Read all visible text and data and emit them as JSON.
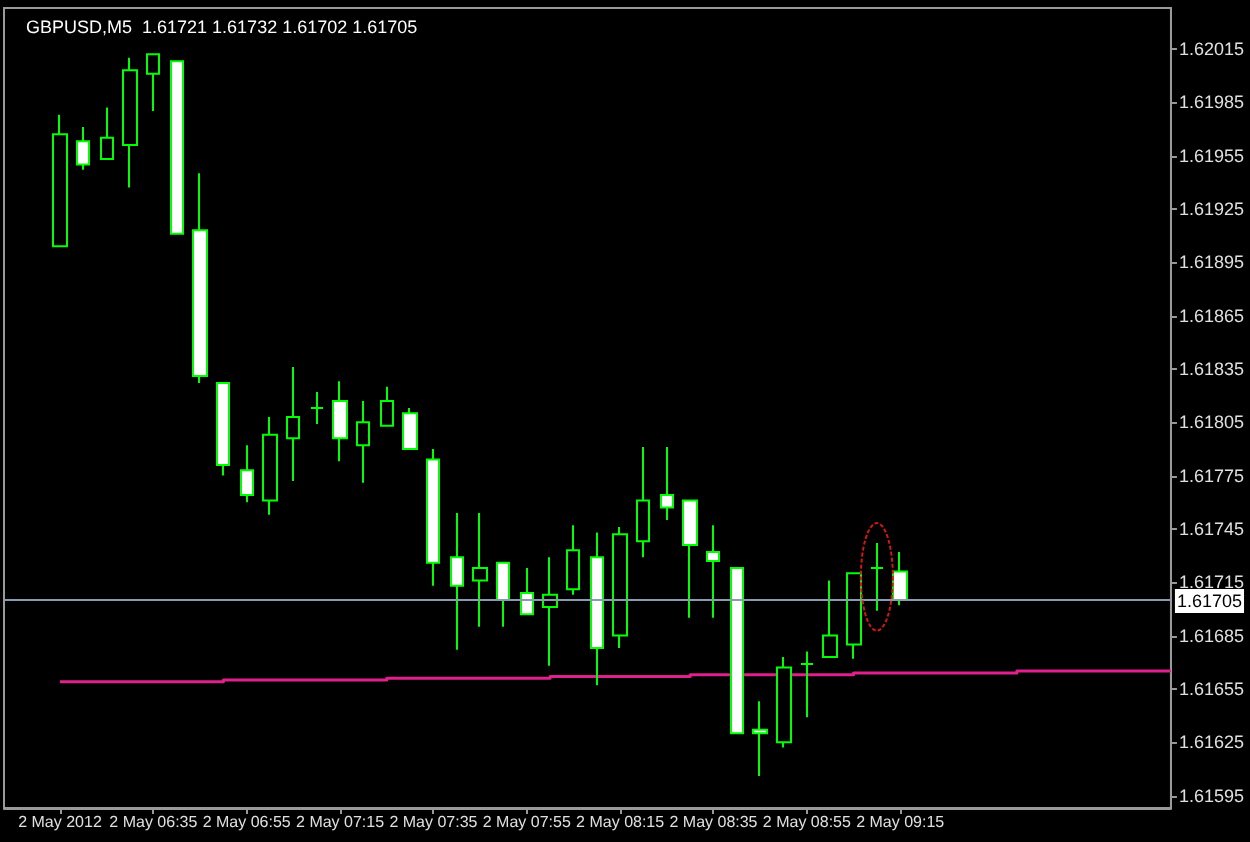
{
  "chart_data": {
    "type": "candlestick",
    "title": "GBPUSD,M5  1.61721 1.61732 1.61702 1.61705",
    "x": [
      "2012-05-02T06:15",
      "2012-05-02T06:20",
      "2012-05-02T06:25",
      "2012-05-02T06:30",
      "2012-05-02T06:35",
      "2012-05-02T06:40",
      "2012-05-02T06:45",
      "2012-05-02T06:50",
      "2012-05-02T06:55",
      "2012-05-02T07:00",
      "2012-05-02T07:05",
      "2012-05-02T07:10",
      "2012-05-02T07:15",
      "2012-05-02T07:20",
      "2012-05-02T07:25",
      "2012-05-02T07:30",
      "2012-05-02T07:35",
      "2012-05-02T07:40",
      "2012-05-02T07:45",
      "2012-05-02T07:50",
      "2012-05-02T07:55",
      "2012-05-02T08:00",
      "2012-05-02T08:05",
      "2012-05-02T08:10",
      "2012-05-02T08:15",
      "2012-05-02T08:20",
      "2012-05-02T08:25",
      "2012-05-02T08:30",
      "2012-05-02T08:35",
      "2012-05-02T08:40",
      "2012-05-02T08:45",
      "2012-05-02T08:50",
      "2012-05-02T08:55",
      "2012-05-02T09:00",
      "2012-05-02T09:05",
      "2012-05-02T09:10",
      "2012-05-02T09:15"
    ],
    "color": "#00ff00",
    "ohlc": [
      [
        1.61904,
        1.61978,
        1.61904,
        1.61967
      ],
      [
        1.61963,
        1.61971,
        1.61947,
        1.6195
      ],
      [
        1.61953,
        1.61982,
        1.61953,
        1.61965
      ],
      [
        1.61961,
        1.6201,
        1.61937,
        1.62003
      ],
      [
        1.62001,
        1.62012,
        1.6198,
        1.62012
      ],
      [
        1.62008,
        1.62008,
        1.61911,
        1.61911
      ],
      [
        1.61913,
        1.61945,
        1.61827,
        1.61831
      ],
      [
        1.61827,
        1.61827,
        1.61775,
        1.61781
      ],
      [
        1.61778,
        1.61792,
        1.6176,
        1.61764
      ],
      [
        1.61761,
        1.61808,
        1.61753,
        1.61798
      ],
      [
        1.61796,
        1.61836,
        1.61772,
        1.61808
      ],
      [
        1.61813,
        1.61822,
        1.61804,
        1.61813
      ],
      [
        1.61817,
        1.61828,
        1.61783,
        1.61796
      ],
      [
        1.61792,
        1.61817,
        1.61771,
        1.61805
      ],
      [
        1.61803,
        1.61825,
        1.61803,
        1.61817
      ],
      [
        1.6181,
        1.61813,
        1.6179,
        1.6179
      ],
      [
        1.61784,
        1.6179,
        1.61713,
        1.61726
      ],
      [
        1.61729,
        1.61754,
        1.61677,
        1.61713
      ],
      [
        1.61716,
        1.61754,
        1.6169,
        1.61723
      ],
      [
        1.61726,
        1.61726,
        1.6169,
        1.61705
      ],
      [
        1.61709,
        1.61723,
        1.61697,
        1.61697
      ],
      [
        1.61701,
        1.61729,
        1.61668,
        1.61708
      ],
      [
        1.61711,
        1.61747,
        1.61708,
        1.61733
      ],
      [
        1.61729,
        1.61743,
        1.61657,
        1.61678
      ],
      [
        1.61685,
        1.61746,
        1.61678,
        1.61742
      ],
      [
        1.61738,
        1.61791,
        1.61729,
        1.61761
      ],
      [
        1.61764,
        1.61791,
        1.6175,
        1.61757
      ],
      [
        1.61761,
        1.61761,
        1.61695,
        1.61736
      ],
      [
        1.61732,
        1.61747,
        1.61695,
        1.61727
      ],
      [
        1.61723,
        1.61723,
        1.6163,
        1.6163
      ],
      [
        1.61632,
        1.61648,
        1.61606,
        1.6163
      ],
      [
        1.61625,
        1.61673,
        1.61622,
        1.61667
      ],
      [
        1.61669,
        1.61676,
        1.61639,
        1.61669
      ],
      [
        1.61673,
        1.61716,
        1.61673,
        1.61685
      ],
      [
        1.6168,
        1.6172,
        1.61672,
        1.6172
      ],
      [
        1.61723,
        1.61737,
        1.61699,
        1.61723
      ],
      [
        1.61721,
        1.61732,
        1.61702,
        1.61705
      ]
    ],
    "series": [
      {
        "type": "step",
        "color": "#e0208c",
        "x": [
          "2012-05-02T06:15",
          "2012-05-02T06:50",
          "2012-05-02T07:25",
          "2012-05-02T08:00",
          "2012-05-02T08:30",
          "2012-05-02T09:05",
          "2012-05-02T09:40",
          "2012-05-02T10:13"
        ],
        "values": [
          1.61659,
          1.6166,
          1.61661,
          1.61662,
          1.61663,
          1.61664,
          1.61665,
          1.61665
        ]
      }
    ],
    "xlim": [
      "2012-05-02T06:03",
      "2012-05-02T10:13"
    ],
    "xticks": [
      {
        "value": "2012-05-02T06:15",
        "label": "2 May 2012"
      },
      {
        "value": "2012-05-02T06:35",
        "label": "2 May 06:35"
      },
      {
        "value": "2012-05-02T06:55",
        "label": "2 May 06:55"
      },
      {
        "value": "2012-05-02T07:15",
        "label": "2 May 07:15"
      },
      {
        "value": "2012-05-02T07:35",
        "label": "2 May 07:35"
      },
      {
        "value": "2012-05-02T07:55",
        "label": "2 May 07:55"
      },
      {
        "value": "2012-05-02T08:15",
        "label": "2 May 08:15"
      },
      {
        "value": "2012-05-02T08:35",
        "label": "2 May 08:35"
      },
      {
        "value": "2012-05-02T08:55",
        "label": "2 May 08:55"
      },
      {
        "value": "2012-05-02T09:15",
        "label": "2 May 09:15"
      }
    ],
    "ylim": [
      1.61588,
      1.62038
    ],
    "yticks": [
      1.61595,
      1.61625,
      1.61655,
      1.61685,
      1.61715,
      1.61745,
      1.61775,
      1.61805,
      1.61835,
      1.61865,
      1.61895,
      1.61925,
      1.61955,
      1.61985,
      1.62015
    ],
    "ref_lines": [
      {
        "axis": "y",
        "value": 1.61705,
        "label": "1.61705",
        "color": "#8a9ab0"
      }
    ]
  }
}
